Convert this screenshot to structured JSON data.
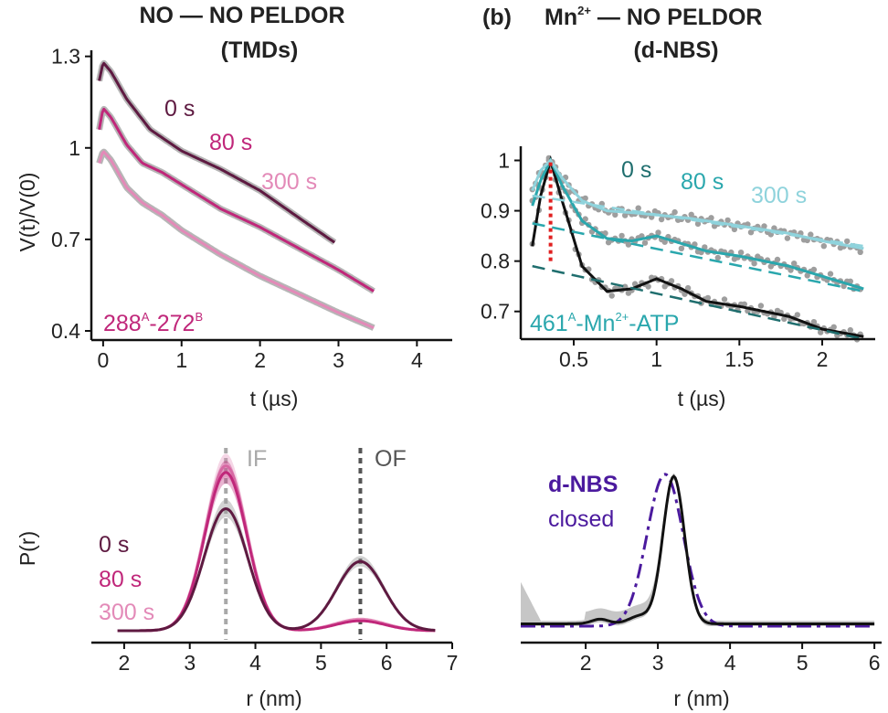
{
  "titles": {
    "a_line1": "NO — NO PELDOR",
    "a_line2": "(TMDs)",
    "b_panel": "(b)",
    "b_line1_pre": "Mn",
    "b_line1_sup": "2+",
    "b_line1_post": " — NO PELDOR",
    "b_line2": "(d-NBS)"
  },
  "colors": {
    "dark": "#5e1a41",
    "mid": "#c0277a",
    "light": "#e38ab8",
    "teal_dark": "#1f6e6e",
    "teal": "#2aa7ad",
    "teal_light": "#8fd3dc",
    "gray": "#9e9e9e",
    "black": "#111111",
    "purple": "#4b1a9e",
    "red": "#e02020"
  },
  "chart_data": [
    {
      "id": "top-left",
      "type": "line",
      "xlabel": "t (µs)",
      "ylabel": "V(t)/V(0)",
      "xlim": [
        -0.15,
        4.45
      ],
      "ylim": [
        0.37,
        1.32
      ],
      "xticks": [
        0,
        1,
        2,
        3,
        4
      ],
      "yticks": [
        0.4,
        0.7,
        1,
        1.3
      ],
      "ytick_labels": [
        "0.4",
        "0.7",
        "1",
        "1.3"
      ],
      "series": [
        {
          "name": "0 s",
          "color_key": "dark",
          "x": [
            -0.05,
            0,
            0.1,
            0.3,
            0.6,
            1,
            1.5,
            2,
            2.5,
            2.95
          ],
          "y": [
            1.22,
            1.28,
            1.25,
            1.16,
            1.06,
            0.99,
            0.93,
            0.86,
            0.77,
            0.69
          ]
        },
        {
          "name": "80 s",
          "color_key": "mid",
          "x": [
            -0.05,
            0,
            0.1,
            0.3,
            0.5,
            0.75,
            1,
            1.5,
            2,
            2.5,
            3,
            3.45
          ],
          "y": [
            1.06,
            1.13,
            1.1,
            1.01,
            0.95,
            0.92,
            0.88,
            0.8,
            0.74,
            0.67,
            0.6,
            0.53
          ]
        },
        {
          "name": "300 s",
          "color_key": "light",
          "x": [
            -0.05,
            0,
            0.1,
            0.3,
            0.5,
            0.75,
            1,
            1.5,
            2,
            2.5,
            3,
            3.45
          ],
          "y": [
            0.95,
            0.99,
            0.96,
            0.87,
            0.82,
            0.78,
            0.73,
            0.65,
            0.58,
            0.52,
            0.46,
            0.41
          ]
        }
      ],
      "annotations": [
        {
          "text": "0 s",
          "color_key": "dark"
        },
        {
          "text": "80 s",
          "color_key": "mid"
        },
        {
          "text": "300 s",
          "color_key": "light"
        }
      ],
      "construct": {
        "a": "288",
        "a_sup": "A",
        "dash": "-",
        "b": "272",
        "b_sup": "B"
      }
    },
    {
      "id": "top-right",
      "type": "line",
      "xlabel": "t (µs)",
      "ylabel": "",
      "xlim": [
        0.18,
        2.32
      ],
      "ylim": [
        0.645,
        1.01
      ],
      "xticks": [
        0.5,
        1,
        1.5,
        2
      ],
      "xtick_labels": [
        "0.5",
        "1",
        "1.5",
        "2"
      ],
      "yticks": [
        0.7,
        0.8,
        0.9,
        1
      ],
      "ytick_labels": [
        "0.7",
        "0.8",
        "0.9",
        "1"
      ],
      "series": [
        {
          "name": "0 s fit",
          "color_key": "black",
          "x": [
            0.25,
            0.3,
            0.36,
            0.43,
            0.55,
            0.7,
            0.85,
            1.0,
            1.15,
            1.3,
            1.5,
            1.8,
            2.0,
            2.25
          ],
          "y": [
            0.83,
            0.93,
            1.0,
            0.92,
            0.79,
            0.74,
            0.745,
            0.765,
            0.745,
            0.72,
            0.71,
            0.69,
            0.665,
            0.65
          ]
        },
        {
          "name": "80 s fit",
          "color_key": "teal",
          "x": [
            0.25,
            0.3,
            0.36,
            0.43,
            0.55,
            0.7,
            0.85,
            1.0,
            1.15,
            1.3,
            1.5,
            1.8,
            2.0,
            2.25
          ],
          "y": [
            0.91,
            0.96,
            1.0,
            0.95,
            0.88,
            0.845,
            0.84,
            0.85,
            0.835,
            0.82,
            0.81,
            0.79,
            0.77,
            0.745
          ]
        },
        {
          "name": "300 s fit",
          "color_key": "teal_light",
          "x": [
            0.25,
            0.3,
            0.36,
            0.43,
            0.55,
            0.7,
            0.9,
            1.2,
            1.5,
            1.8,
            2.0,
            2.25
          ],
          "y": [
            0.94,
            0.98,
            1.0,
            0.965,
            0.92,
            0.9,
            0.895,
            0.885,
            0.87,
            0.855,
            0.84,
            0.825
          ]
        },
        {
          "name": "0 s background",
          "color_key": "teal_dark",
          "dashed": true,
          "x": [
            0.25,
            2.25
          ],
          "y": [
            0.79,
            0.645
          ]
        },
        {
          "name": "80 s background",
          "color_key": "teal",
          "dashed": true,
          "x": [
            0.25,
            2.25
          ],
          "y": [
            0.875,
            0.74
          ]
        },
        {
          "name": "300 s background",
          "color_key": "teal_light",
          "dashed": true,
          "x": [
            0.25,
            2.25
          ],
          "y": [
            0.93,
            0.83
          ]
        }
      ],
      "modulation_depth_marker": {
        "x": 0.36,
        "y_from": 0.8,
        "y_to": 1.0,
        "color_key": "red"
      },
      "annotations": [
        {
          "text": "0 s",
          "color_key": "teal_dark"
        },
        {
          "text": "80 s",
          "color_key": "teal"
        },
        {
          "text": "300 s",
          "color_key": "teal_light"
        }
      ],
      "construct": {
        "a": "461",
        "a_sup": "A",
        "mid": "-Mn",
        "mid_sup": "2+",
        "end": "-ATP"
      }
    },
    {
      "id": "bottom-left",
      "type": "line",
      "xlabel": "r (nm)",
      "ylabel": "P(r)",
      "xlim": [
        1.5,
        7
      ],
      "ylim": [
        0,
        1.12
      ],
      "xticks": [
        2,
        3,
        4,
        5,
        6,
        7
      ],
      "series": [
        {
          "name": "300 s",
          "color_key": "light",
          "peaks": [
            {
              "mu": 3.55,
              "sigma": 0.32,
              "amp": 1.0
            },
            {
              "mu": 5.6,
              "sigma": 0.38,
              "amp": 0.07
            }
          ]
        },
        {
          "name": "80 s",
          "color_key": "mid",
          "peaks": [
            {
              "mu": 3.55,
              "sigma": 0.32,
              "amp": 0.96
            },
            {
              "mu": 5.6,
              "sigma": 0.38,
              "amp": 0.06
            }
          ]
        },
        {
          "name": "0 s",
          "color_key": "dark",
          "peaks": [
            {
              "mu": 3.55,
              "sigma": 0.33,
              "amp": 0.74
            },
            {
              "mu": 5.6,
              "sigma": 0.36,
              "amp": 0.42
            }
          ]
        }
      ],
      "reference_lines": [
        {
          "x": 3.55,
          "label": "IF",
          "color_key": "gray"
        },
        {
          "x": 5.6,
          "label": "OF",
          "color_key": "dark_gray"
        }
      ],
      "legend": [
        {
          "text": "0 s",
          "color_key": "dark"
        },
        {
          "text": "80 s",
          "color_key": "mid"
        },
        {
          "text": "300 s",
          "color_key": "light"
        }
      ]
    },
    {
      "id": "bottom-right",
      "type": "line",
      "xlabel": "r (nm)",
      "ylabel": "",
      "xlim": [
        1.1,
        6.1
      ],
      "ylim": [
        0,
        1.12
      ],
      "xticks": [
        2,
        3,
        4,
        5,
        6
      ],
      "series": [
        {
          "name": "d-NBS closed",
          "color_key": "purple",
          "dashed": true,
          "peaks": [
            {
              "mu": 3.1,
              "sigma": 0.25,
              "amp": 0.98
            }
          ]
        },
        {
          "name": "distance distribution",
          "color_key": "black",
          "peaks": [
            {
              "mu": 3.22,
              "sigma": 0.15,
              "amp": 0.95
            },
            {
              "mu": 2.2,
              "sigma": 0.12,
              "amp": 0.03
            },
            {
              "mu": 2.75,
              "sigma": 0.15,
              "amp": 0.05
            }
          ],
          "baseline": 0.015
        }
      ],
      "legend": {
        "line1": "d-NBS",
        "line2": "closed",
        "color_key": "purple"
      }
    }
  ]
}
